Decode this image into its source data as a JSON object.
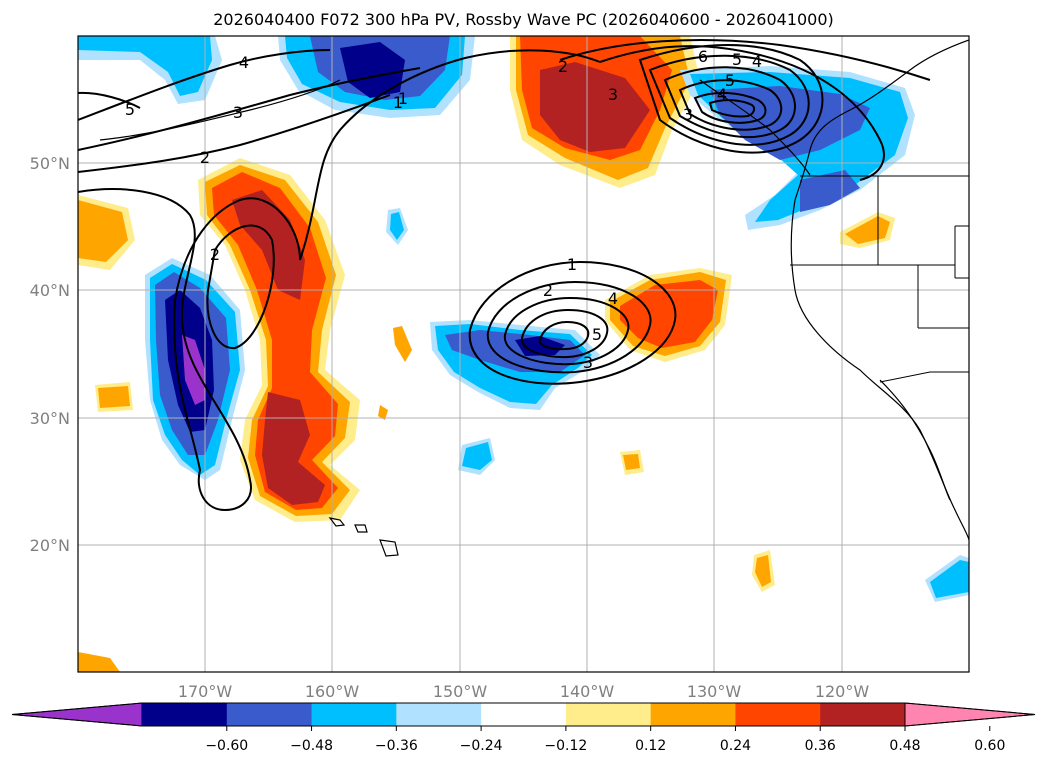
{
  "title": "2026040400 F072 300 hPa PV, Rossby Wave PC (2026040600 - 2026041000)",
  "lat_labels": [
    "50°N",
    "40°N",
    "30°N",
    "20°N"
  ],
  "lon_labels": [
    "170°W",
    "160°W",
    "150°W",
    "140°W",
    "130°W",
    "120°W"
  ],
  "colorbar": {
    "ticks": [
      "−0.60",
      "−0.48",
      "−0.36",
      "−0.24",
      "−0.12",
      "0.12",
      "0.24",
      "0.36",
      "0.48",
      "0.60"
    ],
    "colors": [
      "#9933cc",
      "#00008b",
      "#3a5bcc",
      "#00bfff",
      "#b0e2ff",
      "#ffffff",
      "#ffec8b",
      "#ffa500",
      "#ff4500",
      "#b22222",
      "#ff85b0"
    ]
  },
  "contour_labels": [
    "1",
    "2",
    "3",
    "4",
    "5",
    "6",
    "1",
    "2",
    "3",
    "4",
    "5",
    "4",
    "5",
    "3",
    "2",
    "1",
    "2",
    "3",
    "4",
    "5"
  ],
  "colors": {
    "grid": "#b0b0b0",
    "coast": "#000000"
  }
}
